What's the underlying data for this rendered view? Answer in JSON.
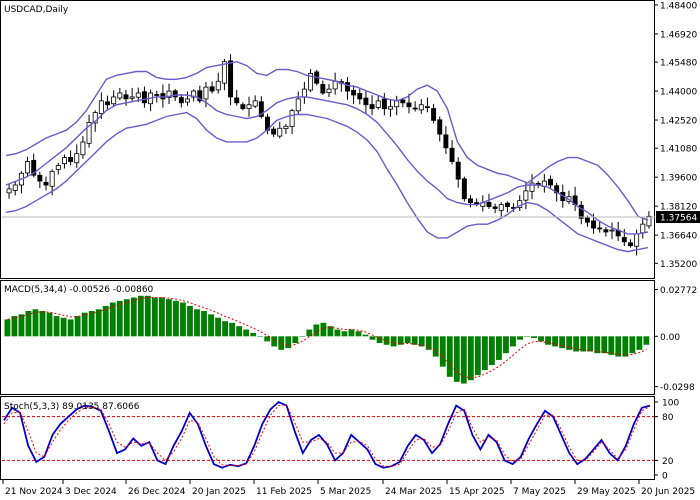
{
  "chart_data": [
    {
      "type": "candlestick",
      "title": "USDCAD,Daily",
      "ylim": [
        1.345,
        1.4855
      ],
      "y_ticks": [
        "1.48400",
        "1.46920",
        "1.45480",
        "1.44000",
        "1.42520",
        "1.41080",
        "1.39600",
        "1.38120",
        "1.36640",
        "1.35200"
      ],
      "current_price_label": "1.37564",
      "current_price": 1.37564,
      "x_ticks": [
        "21 Nov 2024",
        "3 Dec 2024",
        "26 Dec 2024",
        "20 Jan 2025",
        "11 Feb 2025",
        "5 Mar 2025",
        "24 Mar 2025",
        "15 Apr 2025",
        "7 May 2025",
        "29 May 2025",
        "20 Jun 2025"
      ],
      "price_path": [
        1.39,
        1.392,
        1.398,
        1.404,
        1.397,
        1.394,
        1.392,
        1.399,
        1.402,
        1.406,
        1.404,
        1.408,
        1.414,
        1.424,
        1.429,
        1.435,
        1.433,
        1.437,
        1.439,
        1.436,
        1.437,
        1.439,
        1.434,
        1.439,
        1.438,
        1.436,
        1.44,
        1.437,
        1.434,
        1.436,
        1.44,
        1.435,
        1.442,
        1.44,
        1.445,
        1.455,
        1.437,
        1.434,
        1.431,
        1.433,
        1.435,
        1.427,
        1.42,
        1.418,
        1.421,
        1.422,
        1.43,
        1.436,
        1.441,
        1.449,
        1.444,
        1.439,
        1.441,
        1.445,
        1.444,
        1.44,
        1.438,
        1.436,
        1.433,
        1.431,
        1.435,
        1.431,
        1.432,
        1.435,
        1.434,
        1.432,
        1.431,
        1.433,
        1.432,
        1.425,
        1.418,
        1.411,
        1.404,
        1.395,
        1.385,
        1.383,
        1.382,
        1.383,
        1.381,
        1.38,
        1.382,
        1.381,
        1.38,
        1.384,
        1.389,
        1.393,
        1.392,
        1.394,
        1.392,
        1.388,
        1.384,
        1.386,
        1.382,
        1.375,
        1.373,
        1.37,
        1.37,
        1.368,
        1.369,
        1.366,
        1.363,
        1.361,
        1.367,
        1.372,
        1.376
      ],
      "series": [
        {
          "name": "Upper band",
          "color": "#6a5acd",
          "values": [
            1.407,
            1.408,
            1.41,
            1.413,
            1.416,
            1.418,
            1.42,
            1.424,
            1.43,
            1.438,
            1.446,
            1.448,
            1.449,
            1.45,
            1.45,
            1.447,
            1.446,
            1.446,
            1.447,
            1.449,
            1.452,
            1.453,
            1.454,
            1.455,
            1.453,
            1.449,
            1.448,
            1.451,
            1.451,
            1.45,
            1.448,
            1.447,
            1.446,
            1.445,
            1.443,
            1.442,
            1.44,
            1.438,
            1.436,
            1.435,
            1.437,
            1.441,
            1.443,
            1.44,
            1.431,
            1.414,
            1.406,
            1.402,
            1.4,
            1.398,
            1.397,
            1.395,
            1.393,
            1.397,
            1.401,
            1.404,
            1.406,
            1.406,
            1.404,
            1.402,
            1.397,
            1.391,
            1.384,
            1.376,
            1.374
          ]
        },
        {
          "name": "Middle band",
          "color": "#6a5acd",
          "values": [
            1.392,
            1.394,
            1.396,
            1.399,
            1.403,
            1.407,
            1.411,
            1.416,
            1.421,
            1.425,
            1.43,
            1.433,
            1.434,
            1.435,
            1.436,
            1.437,
            1.437,
            1.438,
            1.438,
            1.437,
            1.434,
            1.43,
            1.428,
            1.427,
            1.426,
            1.427,
            1.43,
            1.434,
            1.436,
            1.437,
            1.437,
            1.436,
            1.435,
            1.434,
            1.433,
            1.431,
            1.428,
            1.424,
            1.418,
            1.412,
            1.405,
            1.399,
            1.394,
            1.39,
            1.385,
            1.383,
            1.382,
            1.382,
            1.384,
            1.386,
            1.388,
            1.391,
            1.392,
            1.392,
            1.391,
            1.388,
            1.385,
            1.381,
            1.378,
            1.374,
            1.371,
            1.369,
            1.367,
            1.367,
            1.368
          ]
        },
        {
          "name": "Lower band",
          "color": "#6a5acd",
          "values": [
            1.378,
            1.379,
            1.381,
            1.384,
            1.387,
            1.39,
            1.394,
            1.399,
            1.404,
            1.409,
            1.414,
            1.418,
            1.421,
            1.422,
            1.423,
            1.425,
            1.427,
            1.428,
            1.429,
            1.426,
            1.42,
            1.416,
            1.414,
            1.414,
            1.414,
            1.416,
            1.42,
            1.425,
            1.427,
            1.428,
            1.428,
            1.427,
            1.426,
            1.424,
            1.422,
            1.419,
            1.415,
            1.409,
            1.4,
            1.392,
            1.383,
            1.375,
            1.368,
            1.365,
            1.365,
            1.368,
            1.371,
            1.372,
            1.372,
            1.374,
            1.377,
            1.381,
            1.383,
            1.382,
            1.379,
            1.375,
            1.371,
            1.367,
            1.365,
            1.363,
            1.361,
            1.359,
            1.358,
            1.359,
            1.36
          ]
        }
      ]
    },
    {
      "type": "bar",
      "title": "MACD(5,34,4) -0.00526 -0.00860",
      "ylim": [
        -0.033,
        0.031
      ],
      "y_ticks": [
        "0.02772",
        "0.00",
        "-0.0298"
      ],
      "values": [
        0.01,
        0.012,
        0.013,
        0.015,
        0.016,
        0.015,
        0.014,
        0.012,
        0.011,
        0.01,
        0.012,
        0.014,
        0.015,
        0.016,
        0.018,
        0.02,
        0.021,
        0.022,
        0.023,
        0.024,
        0.024,
        0.023,
        0.023,
        0.022,
        0.021,
        0.02,
        0.018,
        0.016,
        0.015,
        0.013,
        0.011,
        0.009,
        0.008,
        0.006,
        0.004,
        0.002,
        0.0,
        -0.003,
        -0.006,
        -0.008,
        -0.007,
        -0.004,
        0.0,
        0.004,
        0.007,
        0.008,
        0.006,
        0.004,
        0.003,
        0.004,
        0.003,
        0.001,
        -0.002,
        -0.004,
        -0.005,
        -0.006,
        -0.005,
        -0.004,
        -0.005,
        -0.006,
        -0.008,
        -0.012,
        -0.018,
        -0.024,
        -0.027,
        -0.028,
        -0.026,
        -0.023,
        -0.02,
        -0.017,
        -0.014,
        -0.01,
        -0.006,
        -0.002,
        0.0,
        -0.001,
        -0.003,
        -0.005,
        -0.006,
        -0.007,
        -0.008,
        -0.009,
        -0.009,
        -0.009,
        -0.01,
        -0.01,
        -0.011,
        -0.012,
        -0.012,
        -0.01,
        -0.008,
        -0.005
      ]
    },
    {
      "type": "line",
      "title": "Stoch(5,3,3) 89.0135 87.6066",
      "ylim": [
        0,
        100
      ],
      "y_ticks": [
        "100",
        "80",
        "20",
        "0"
      ],
      "series": [
        {
          "name": "%K",
          "color": "#0000cc",
          "values": [
            75,
            92,
            85,
            40,
            18,
            25,
            55,
            70,
            80,
            90,
            95,
            93,
            88,
            60,
            30,
            35,
            50,
            40,
            45,
            20,
            15,
            40,
            60,
            85,
            70,
            40,
            15,
            10,
            14,
            12,
            16,
            40,
            70,
            90,
            100,
            95,
            60,
            30,
            48,
            55,
            42,
            20,
            30,
            55,
            45,
            35,
            15,
            10,
            12,
            18,
            40,
            55,
            48,
            30,
            42,
            70,
            95,
            88,
            55,
            35,
            55,
            45,
            20,
            15,
            25,
            50,
            70,
            88,
            80,
            55,
            30,
            15,
            22,
            35,
            48,
            30,
            20,
            40,
            70,
            92,
            95
          ]
        },
        {
          "name": "%D",
          "color": "#ff0000",
          "values": [
            70,
            85,
            86,
            60,
            30,
            25,
            45,
            62,
            75,
            85,
            92,
            93,
            90,
            70,
            45,
            38,
            45,
            43,
            44,
            30,
            20,
            32,
            50,
            75,
            72,
            50,
            25,
            14,
            13,
            13,
            15,
            32,
            58,
            82,
            95,
            96,
            72,
            45,
            45,
            50,
            45,
            30,
            30,
            45,
            46,
            40,
            22,
            12,
            12,
            15,
            32,
            48,
            50,
            38,
            40,
            60,
            85,
            90,
            65,
            45,
            52,
            48,
            28,
            18,
            22,
            42,
            62,
            82,
            82,
            62,
            38,
            20,
            20,
            32,
            45,
            35,
            22,
            35,
            62,
            88,
            94
          ]
        }
      ],
      "levels": [
        "80",
        "20"
      ]
    }
  ]
}
